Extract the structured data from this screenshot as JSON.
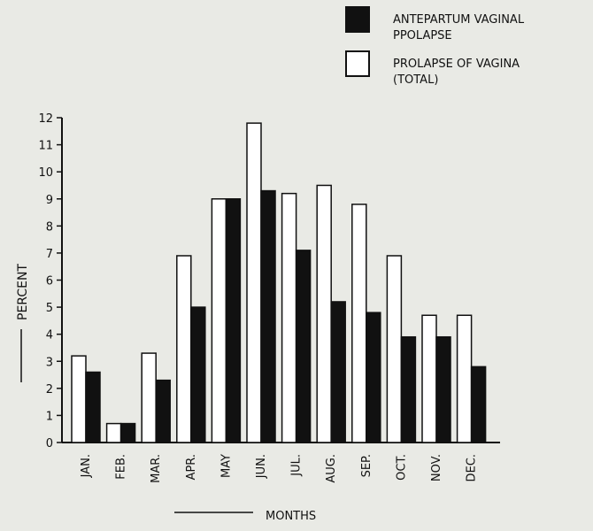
{
  "chart_data": {
    "type": "bar",
    "title": "",
    "xlabel": "MONTHS",
    "ylabel": "PERCENT",
    "categories": [
      "JAN.",
      "FEB.",
      "MAR.",
      "APR.",
      "MAY",
      "JUN.",
      "JUL.",
      "AUG.",
      "SEP.",
      "OCT.",
      "NOV.",
      "DEC."
    ],
    "series": [
      {
        "name": "PROLAPSE OF VAGINA (TOTAL)",
        "legend_line1": "PROLAPSE OF VAGINA",
        "legend_line2": "(TOTAL)",
        "color": "#ffffff",
        "values": [
          3.2,
          0.7,
          3.3,
          6.9,
          9.0,
          11.8,
          9.2,
          9.5,
          8.8,
          6.9,
          4.7,
          4.7
        ]
      },
      {
        "name": "ANTEPARTUM VAGINAL PPOLAPSE",
        "legend_line1": "ANTEPARTUM VAGINAL",
        "legend_line2": "PPOLAPSE",
        "color": "#111111",
        "values": [
          2.6,
          0.7,
          2.3,
          5.0,
          9.0,
          9.3,
          7.1,
          5.2,
          4.8,
          3.9,
          3.9,
          2.8
        ]
      }
    ],
    "ylim": [
      0,
      12
    ],
    "yticks": [
      "0",
      "1",
      "2",
      "3",
      "4",
      "5",
      "6",
      "7",
      "8",
      "9",
      "10",
      "11",
      "12"
    ],
    "legend_position": "top-right",
    "grid": false
  }
}
